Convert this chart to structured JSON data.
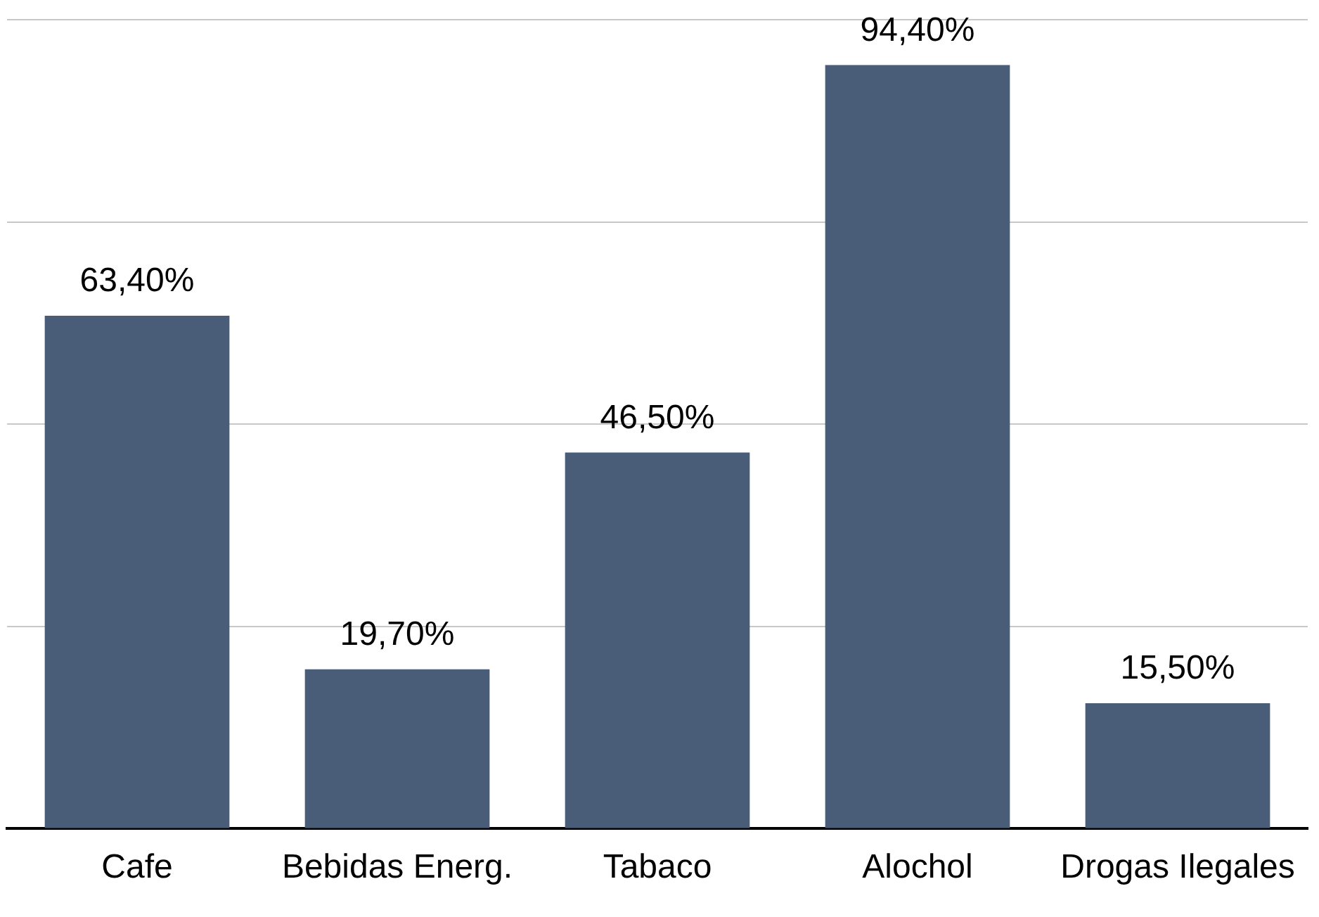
{
  "chart_data": {
    "type": "bar",
    "categories": [
      "Cafe",
      "Bebidas Energ.",
      "Tabaco",
      "Alochol",
      "Drogas Ilegales"
    ],
    "values": [
      63.4,
      19.7,
      46.5,
      94.4,
      15.5
    ],
    "value_labels": [
      "63,40%",
      "19,70%",
      "46,50%",
      "94,40%",
      "15,50%"
    ],
    "color": "#4a5d78",
    "ylim": [
      0,
      100
    ],
    "yticks": [
      {
        "value": 0,
        "label": null
      },
      {
        "value": 25,
        "label": null
      },
      {
        "value": 50,
        "label": null
      },
      {
        "value": 75,
        "label": null
      },
      {
        "value": 100,
        "label": null
      }
    ],
    "grid": "y",
    "tick_labels": "x"
  }
}
